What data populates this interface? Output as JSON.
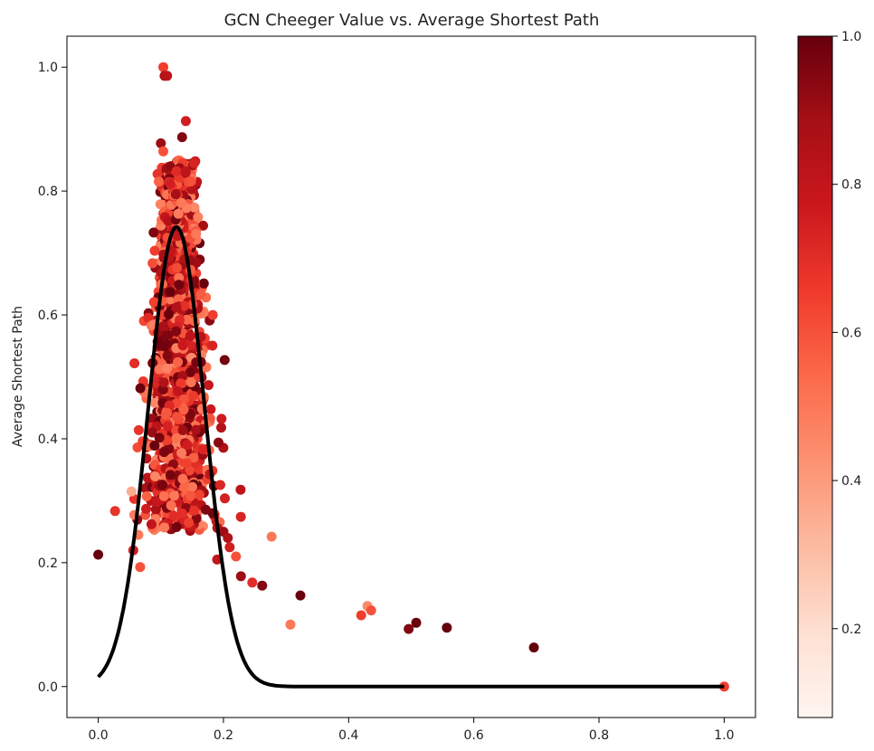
{
  "chart_data": {
    "type": "scatter",
    "title": "GCN Cheeger Value vs. Average Shortest Path",
    "xlabel": "",
    "ylabel": "Average Shortest Path",
    "xlim": [
      -0.05,
      1.05
    ],
    "ylim": [
      -0.05,
      1.05
    ],
    "xticks": [
      "0.0",
      "0.2",
      "0.4",
      "0.6",
      "0.8",
      "1.0"
    ],
    "yticks": [
      "0.0",
      "0.2",
      "0.4",
      "0.6",
      "0.8",
      "1.0"
    ],
    "colorbar": {
      "range": [
        0.08,
        1.0
      ],
      "ticks": [
        "0.2",
        "0.4",
        "0.6",
        "0.8",
        "1.0"
      ],
      "colormap": "Reds",
      "placement": "right"
    },
    "cluster": {
      "description_values": {
        "x_center": 0.128,
        "x_spread": 0.03,
        "y_min": 0.25,
        "y_max": 0.85,
        "count": 1500
      }
    },
    "points": [
      {
        "x": 0.0,
        "y": 0.213,
        "c": 1.0
      },
      {
        "x": 0.104,
        "y": 1.0,
        "c": 0.65
      },
      {
        "x": 0.106,
        "y": 0.986,
        "c": 0.85
      },
      {
        "x": 0.11,
        "y": 0.986,
        "c": 0.82
      },
      {
        "x": 0.14,
        "y": 0.913,
        "c": 0.75
      },
      {
        "x": 0.1,
        "y": 0.877,
        "c": 0.9
      },
      {
        "x": 0.134,
        "y": 0.887,
        "c": 0.95
      },
      {
        "x": 0.104,
        "y": 0.864,
        "c": 0.6
      },
      {
        "x": 0.053,
        "y": 0.315,
        "c": 0.35
      },
      {
        "x": 0.056,
        "y": 0.22,
        "c": 0.75
      },
      {
        "x": 0.067,
        "y": 0.193,
        "c": 0.6
      },
      {
        "x": 0.064,
        "y": 0.245,
        "c": 0.5
      },
      {
        "x": 0.085,
        "y": 0.262,
        "c": 0.8
      },
      {
        "x": 0.2,
        "y": 0.25,
        "c": 0.9
      },
      {
        "x": 0.207,
        "y": 0.24,
        "c": 0.85
      },
      {
        "x": 0.21,
        "y": 0.225,
        "c": 0.75
      },
      {
        "x": 0.19,
        "y": 0.205,
        "c": 0.8
      },
      {
        "x": 0.22,
        "y": 0.21,
        "c": 0.6
      },
      {
        "x": 0.228,
        "y": 0.178,
        "c": 0.9
      },
      {
        "x": 0.246,
        "y": 0.168,
        "c": 0.7
      },
      {
        "x": 0.262,
        "y": 0.163,
        "c": 0.95
      },
      {
        "x": 0.277,
        "y": 0.242,
        "c": 0.5
      },
      {
        "x": 0.323,
        "y": 0.147,
        "c": 1.0
      },
      {
        "x": 0.307,
        "y": 0.1,
        "c": 0.5
      },
      {
        "x": 0.42,
        "y": 0.115,
        "c": 0.65
      },
      {
        "x": 0.43,
        "y": 0.13,
        "c": 0.45
      },
      {
        "x": 0.436,
        "y": 0.123,
        "c": 0.6
      },
      {
        "x": 0.496,
        "y": 0.093,
        "c": 0.95
      },
      {
        "x": 0.508,
        "y": 0.103,
        "c": 1.0
      },
      {
        "x": 0.557,
        "y": 0.095,
        "c": 1.0
      },
      {
        "x": 0.696,
        "y": 0.063,
        "c": 1.0
      },
      {
        "x": 1.0,
        "y": 0.0,
        "c": 0.65
      }
    ],
    "fit_curve": {
      "type": "gaussian",
      "amplitude": 0.742,
      "mean": 0.125,
      "sigma": 0.045,
      "color": "#000000"
    }
  }
}
